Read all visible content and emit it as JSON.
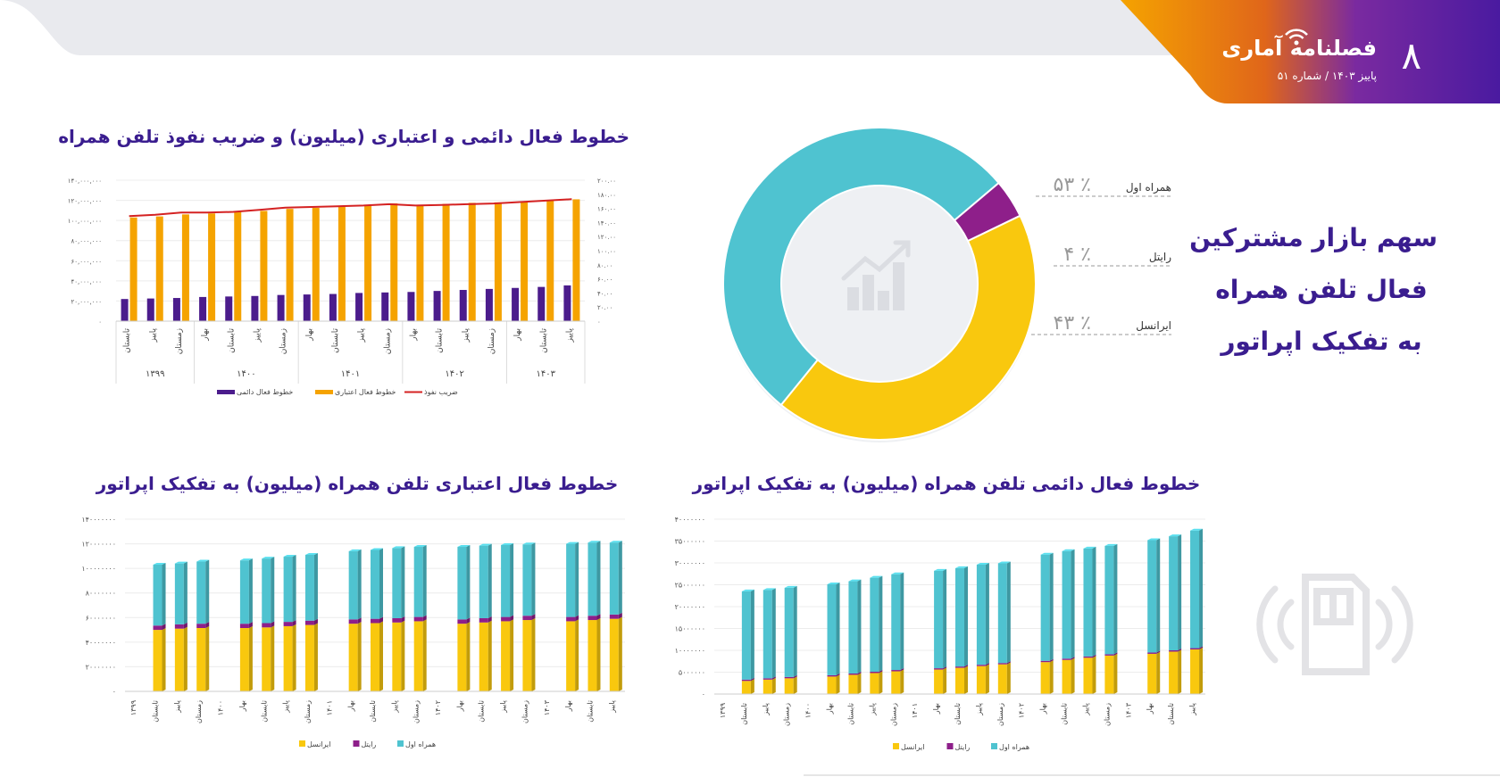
{
  "header": {
    "title": "فصلنامه آماری",
    "subtitle": "پاییز ۱۴۰۳ / شماره ۵۱",
    "page_number": "۸",
    "colors": {
      "orange": "#F5A300",
      "purple": "#5B1EA6"
    }
  },
  "market_share": {
    "title_lines": [
      "سهم بازار مشترکین",
      "فعال تلفن همراه",
      "به تفکیک اپراتور"
    ],
    "center_icon": "growth-chart-icon",
    "slices": [
      {
        "name": "همراه اول",
        "percent_label": "۵۳ ٪",
        "value": 53,
        "color": "#4FC3D0"
      },
      {
        "name": "رایتل",
        "percent_label": "۴ ٪",
        "value": 4,
        "color": "#8E1F8A"
      },
      {
        "name": "ایرانسل",
        "percent_label": "۴۳ ٪",
        "value": 43,
        "color": "#F9C80E"
      }
    ]
  },
  "chart_data": [
    {
      "type": "bar",
      "id": "lines-penetration",
      "title": "خطوط فعال دائمی و اعتباری (میلیون) و ضریب نفوذ تلفن همراه",
      "categories": [
        "تابستان",
        "پاییز",
        "زمستان",
        "بهار",
        "تابستان",
        "پاییز",
        "زمستان",
        "بهار",
        "تابستان",
        "پاییز",
        "زمستان",
        "بهار",
        "تابستان",
        "پاییز",
        "زمستان",
        "بهار",
        "تابستان",
        "پاییز"
      ],
      "groups": [
        {
          "label": "۱۳۹۹",
          "count": 3
        },
        {
          "label": "۱۴۰۰",
          "count": 4
        },
        {
          "label": "۱۴۰۱",
          "count": 4
        },
        {
          "label": "۱۴۰۲",
          "count": 4
        },
        {
          "label": "۱۴۰۳",
          "count": 3
        }
      ],
      "left_ticks": [
        "۰",
        "۲۰,۰۰۰,۰۰۰",
        "۴۰,۰۰۰,۰۰۰",
        "۶۰,۰۰۰,۰۰۰",
        "۸۰,۰۰۰,۰۰۰",
        "۱۰۰,۰۰۰,۰۰۰",
        "۱۲۰,۰۰۰,۰۰۰",
        "۱۴۰,۰۰۰,۰۰۰"
      ],
      "right_ticks": [
        "۰",
        "۲۰.۰۰",
        "۴۰.۰۰",
        "۶۰.۰۰",
        "۸۰.۰۰",
        "۱۰۰.۰۰",
        "۱۲۰.۰۰",
        "۱۴۰.۰۰",
        "۱۶۰.۰۰",
        "۱۸۰.۰۰",
        "۲۰۰.۰۰"
      ],
      "ylim": [
        0,
        140000000
      ],
      "y2lim": [
        0,
        200
      ],
      "series": [
        {
          "name": "خطوط فعال دائمی",
          "axis": "left",
          "kind": "bar",
          "color": "#4B1C8C",
          "values": [
            22000000,
            22500000,
            23000000,
            24000000,
            24500000,
            25000000,
            26000000,
            26500000,
            27000000,
            28000000,
            28500000,
            29000000,
            30000000,
            31000000,
            32000000,
            33000000,
            34000000,
            35500000
          ]
        },
        {
          "name": "خطوط فعال اعتباری",
          "axis": "left",
          "kind": "bar",
          "color": "#F5A300",
          "values": [
            103000000,
            104000000,
            106000000,
            107000000,
            108500000,
            109500000,
            111500000,
            112500000,
            113500000,
            114500000,
            117000000,
            115500000,
            116500000,
            117500000,
            118000000,
            119000000,
            119500000,
            121000000
          ]
        },
        {
          "name": "ضریب نفوذ",
          "axis": "right",
          "kind": "line",
          "color": "#D42222",
          "values": [
            149,
            151,
            154,
            154,
            155,
            158,
            161,
            162,
            163,
            164,
            166,
            164,
            165,
            166,
            167,
            169,
            171,
            173
          ]
        }
      ],
      "legend": "bottom"
    },
    {
      "type": "bar",
      "id": "prepaid-by-operator",
      "title": "خطوط فعال اعتباری تلفن همراه (میلیون) به تفکیک اپراتور",
      "stacked": true,
      "slots": [
        "۱۳۹۹",
        "تابستان",
        "پاییز",
        "زمستان",
        "۱۴۰۰",
        "بهار",
        "تابستان",
        "پاییز",
        "زمستان",
        "۱۴۰۱",
        "بهار",
        "تابستان",
        "پاییز",
        "زمستان",
        "۱۴۰۲",
        "بهار",
        "تابستان",
        "پاییز",
        "زمستان",
        "۱۴۰۳",
        "بهار",
        "تابستان",
        "پاییز"
      ],
      "y_ticks": [
        "۰",
        "۲۰۰۰۰۰۰۰",
        "۴۰۰۰۰۰۰۰",
        "۶۰۰۰۰۰۰۰",
        "۸۰۰۰۰۰۰۰",
        "۱۰۰۰۰۰۰۰۰",
        "۱۲۰۰۰۰۰۰۰",
        "۱۴۰۰۰۰۰۰۰"
      ],
      "ylim": [
        0,
        140000000
      ],
      "series": [
        {
          "name": "ایرانسل",
          "color": "#F9C80E",
          "values": [
            null,
            50000000,
            51000000,
            51500000,
            null,
            51500000,
            52000000,
            53000000,
            54000000,
            null,
            55000000,
            55500000,
            56000000,
            57000000,
            null,
            55000000,
            56000000,
            57000000,
            58000000,
            null,
            57000000,
            58000000,
            59000000
          ]
        },
        {
          "name": "رایتل",
          "color": "#8E1F8A",
          "values": [
            null,
            3500000,
            3500000,
            3500000,
            null,
            3500000,
            3500000,
            3500000,
            3500000,
            null,
            3500000,
            3500000,
            3500000,
            3500000,
            null,
            3500000,
            3500000,
            3500000,
            3500000,
            null,
            3500000,
            3500000,
            3500000
          ]
        },
        {
          "name": "همراه اول",
          "color": "#4FC3D0",
          "values": [
            null,
            49500000,
            49500000,
            50500000,
            null,
            51500000,
            52500000,
            53000000,
            53500000,
            null,
            55500000,
            56000000,
            57000000,
            57000000,
            null,
            59000000,
            59000000,
            58500000,
            58000000,
            null,
            59500000,
            59500000,
            58500000
          ]
        }
      ],
      "legend": "bottom"
    },
    {
      "type": "bar",
      "id": "postpaid-by-operator",
      "title": "خطوط فعال دائمی تلفن همراه (میلیون) به تفکیک اپراتور",
      "stacked": true,
      "slots": [
        "۱۳۹۹",
        "تابستان",
        "پاییز",
        "زمستان",
        "۱۴۰۰",
        "بهار",
        "تابستان",
        "پاییز",
        "زمستان",
        "۱۴۰۱",
        "بهار",
        "تابستان",
        "پاییز",
        "زمستان",
        "۱۴۰۲",
        "بهار",
        "تابستان",
        "پاییز",
        "زمستان",
        "۱۴۰۳",
        "بهار",
        "تابستان",
        "پاییز"
      ],
      "y_ticks": [
        "۰",
        "۵۰۰۰۰۰۰",
        "۱۰۰۰۰۰۰۰",
        "۱۵۰۰۰۰۰۰",
        "۲۰۰۰۰۰۰۰",
        "۲۵۰۰۰۰۰۰",
        "۳۰۰۰۰۰۰۰",
        "۳۵۰۰۰۰۰۰",
        "۴۰۰۰۰۰۰۰"
      ],
      "ylim": [
        0,
        40000000
      ],
      "series": [
        {
          "name": "ایرانسل",
          "color": "#F9C80E",
          "values": [
            null,
            3000000,
            3300000,
            3600000,
            null,
            4000000,
            4400000,
            4800000,
            5200000,
            null,
            5600000,
            6000000,
            6400000,
            6800000,
            null,
            7300000,
            7800000,
            8300000,
            8800000,
            null,
            9200000,
            9700000,
            10200000
          ]
        },
        {
          "name": "رایتل",
          "color": "#8E1F8A",
          "values": [
            null,
            300000,
            300000,
            300000,
            null,
            300000,
            300000,
            300000,
            300000,
            null,
            300000,
            300000,
            300000,
            300000,
            null,
            300000,
            300000,
            300000,
            300000,
            null,
            300000,
            300000,
            300000
          ]
        },
        {
          "name": "همراه اول",
          "color": "#4FC3D0",
          "values": [
            null,
            20200000,
            20200000,
            20400000,
            null,
            20800000,
            21100000,
            21500000,
            21900000,
            null,
            22300000,
            22500000,
            22900000,
            22800000,
            null,
            24300000,
            24600000,
            24700000,
            24800000,
            null,
            25700000,
            26100000,
            26900000
          ]
        }
      ],
      "legend": "bottom"
    }
  ]
}
